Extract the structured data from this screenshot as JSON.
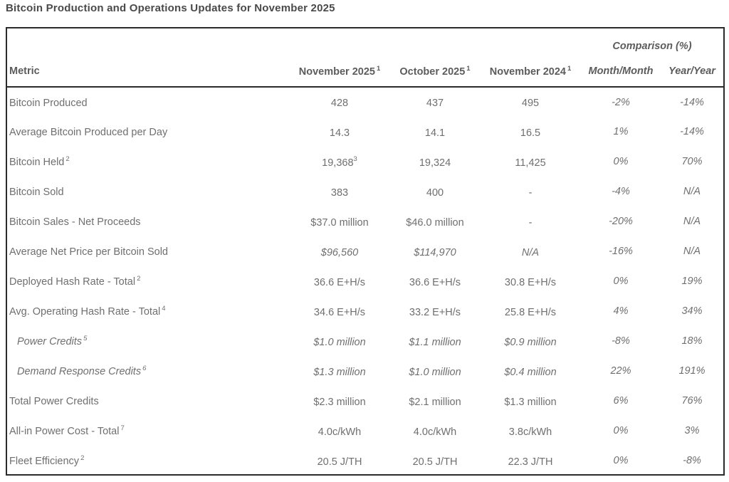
{
  "page": {
    "title": "Bitcoin Production and Operations Updates for November 2025"
  },
  "colors": {
    "title_color": "#4a4a4a",
    "header_color": "#5c5c5c",
    "body_color": "#6f6f6f",
    "border_color": "#2b2b2b"
  },
  "table": {
    "comparison_header": "Comparison (%)",
    "columns": [
      {
        "label": "Metric",
        "sup": ""
      },
      {
        "label": "November 2025",
        "sup": "1"
      },
      {
        "label": "October 2025",
        "sup": "1"
      },
      {
        "label": "November 2024",
        "sup": "1"
      },
      {
        "label": "Month/Month",
        "sup": ""
      },
      {
        "label": "Year/Year",
        "sup": ""
      }
    ],
    "rows": [
      {
        "metric": {
          "text": "Bitcoin Produced",
          "sup": "",
          "italic": false,
          "indent": false
        },
        "nov2025": {
          "text": "428",
          "sup": "",
          "italic": false
        },
        "oct2025": {
          "text": "437",
          "sup": "",
          "italic": false
        },
        "nov2024": {
          "text": "495",
          "sup": "",
          "italic": false
        },
        "mom": "-2%",
        "yoy": "-14%"
      },
      {
        "metric": {
          "text": "Average Bitcoin Produced per Day",
          "sup": "",
          "italic": false,
          "indent": false
        },
        "nov2025": {
          "text": "14.3",
          "sup": "",
          "italic": false
        },
        "oct2025": {
          "text": "14.1",
          "sup": "",
          "italic": false
        },
        "nov2024": {
          "text": "16.5",
          "sup": "",
          "italic": false
        },
        "mom": "1%",
        "yoy": "-14%"
      },
      {
        "metric": {
          "text": "Bitcoin Held",
          "sup": "2",
          "italic": false,
          "indent": false
        },
        "nov2025": {
          "text": "19,368",
          "sup": "3",
          "italic": false
        },
        "oct2025": {
          "text": "19,324",
          "sup": "",
          "italic": false
        },
        "nov2024": {
          "text": "11,425",
          "sup": "",
          "italic": false
        },
        "mom": "0%",
        "yoy": "70%"
      },
      {
        "metric": {
          "text": "Bitcoin Sold",
          "sup": "",
          "italic": false,
          "indent": false
        },
        "nov2025": {
          "text": "383",
          "sup": "",
          "italic": false
        },
        "oct2025": {
          "text": "400",
          "sup": "",
          "italic": false
        },
        "nov2024": {
          "text": "-",
          "sup": "",
          "italic": false
        },
        "mom": "-4%",
        "yoy": "N/A"
      },
      {
        "metric": {
          "text": "Bitcoin Sales - Net Proceeds",
          "sup": "",
          "italic": false,
          "indent": false
        },
        "nov2025": {
          "text": "$37.0 million",
          "sup": "",
          "italic": false
        },
        "oct2025": {
          "text": "$46.0 million",
          "sup": "",
          "italic": false
        },
        "nov2024": {
          "text": "-",
          "sup": "",
          "italic": false
        },
        "mom": "-20%",
        "yoy": "N/A"
      },
      {
        "metric": {
          "text": "Average Net Price per Bitcoin Sold",
          "sup": "",
          "italic": false,
          "indent": false
        },
        "nov2025": {
          "text": "$96,560",
          "sup": "",
          "italic": true
        },
        "oct2025": {
          "text": "$114,970",
          "sup": "",
          "italic": true
        },
        "nov2024": {
          "text": "N/A",
          "sup": "",
          "italic": true
        },
        "mom": "-16%",
        "yoy": "N/A"
      },
      {
        "metric": {
          "text": "Deployed Hash Rate - Total",
          "sup": "2",
          "italic": false,
          "indent": false
        },
        "nov2025": {
          "text": "36.6 E+H/s",
          "sup": "",
          "italic": false
        },
        "oct2025": {
          "text": "36.6 E+H/s",
          "sup": "",
          "italic": false
        },
        "nov2024": {
          "text": "30.8 E+H/s",
          "sup": "",
          "italic": false
        },
        "mom": "0%",
        "yoy": "19%"
      },
      {
        "metric": {
          "text": "Avg. Operating Hash Rate - Total",
          "sup": "4",
          "italic": false,
          "indent": false
        },
        "nov2025": {
          "text": "34.6 E+H/s",
          "sup": "",
          "italic": false
        },
        "oct2025": {
          "text": "33.2 E+H/s",
          "sup": "",
          "italic": false
        },
        "nov2024": {
          "text": "25.8 E+H/s",
          "sup": "",
          "italic": false
        },
        "mom": "4%",
        "yoy": "34%"
      },
      {
        "metric": {
          "text": "Power Credits",
          "sup": "5",
          "italic": true,
          "indent": true
        },
        "nov2025": {
          "text": "$1.0 million",
          "sup": "",
          "italic": true
        },
        "oct2025": {
          "text": "$1.1 million",
          "sup": "",
          "italic": true
        },
        "nov2024": {
          "text": "$0.9 million",
          "sup": "",
          "italic": true
        },
        "mom": "-8%",
        "yoy": "18%"
      },
      {
        "metric": {
          "text": "Demand Response Credits",
          "sup": "6",
          "italic": true,
          "indent": true
        },
        "nov2025": {
          "text": "$1.3 million",
          "sup": "",
          "italic": true
        },
        "oct2025": {
          "text": "$1.0 million",
          "sup": "",
          "italic": true
        },
        "nov2024": {
          "text": "$0.4 million",
          "sup": "",
          "italic": true
        },
        "mom": "22%",
        "yoy": "191%"
      },
      {
        "metric": {
          "text": "Total Power Credits",
          "sup": "",
          "italic": false,
          "indent": false
        },
        "nov2025": {
          "text": "$2.3 million",
          "sup": "",
          "italic": false
        },
        "oct2025": {
          "text": "$2.1 million",
          "sup": "",
          "italic": false
        },
        "nov2024": {
          "text": "$1.3 million",
          "sup": "",
          "italic": false
        },
        "mom": "6%",
        "yoy": "76%"
      },
      {
        "metric": {
          "text": "All-in Power Cost - Total",
          "sup": "7",
          "italic": false,
          "indent": false
        },
        "nov2025": {
          "text": "4.0c/kWh",
          "sup": "",
          "italic": false
        },
        "oct2025": {
          "text": "4.0c/kWh",
          "sup": "",
          "italic": false
        },
        "nov2024": {
          "text": "3.8c/kWh",
          "sup": "",
          "italic": false
        },
        "mom": "0%",
        "yoy": "3%"
      },
      {
        "metric": {
          "text": "Fleet Efficiency",
          "sup": "2",
          "italic": false,
          "indent": false
        },
        "nov2025": {
          "text": "20.5 J/TH",
          "sup": "",
          "italic": false
        },
        "oct2025": {
          "text": "20.5 J/TH",
          "sup": "",
          "italic": false
        },
        "nov2024": {
          "text": "22.3 J/TH",
          "sup": "",
          "italic": false
        },
        "mom": "0%",
        "yoy": "-8%"
      }
    ]
  }
}
